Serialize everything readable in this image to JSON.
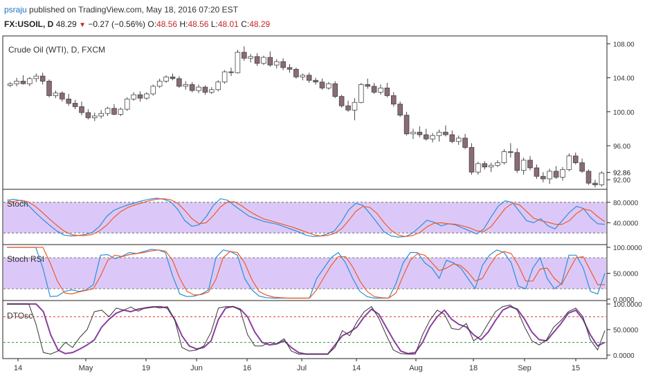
{
  "header": {
    "author": "psraju",
    "published": " published on TradingView.com, May 18, 2016 07:20 EST",
    "symbol": "FX:USOIL, D",
    "last": "48.29",
    "arrow": "▼",
    "change": "−0.27 (−0.56%)",
    "open_label": "O:",
    "open": "48.56",
    "high_label": "H:",
    "high": "48.56",
    "low_label": "L:",
    "low": "48.01",
    "close_label": "C:",
    "close": "48.29"
  },
  "colors": {
    "up_candle": "#ffffff",
    "down_candle": "#8b6b75",
    "wick": "#444444",
    "stoch_k": "#2a8fd6",
    "stoch_d": "#f05a22",
    "dt_k": "#8a3e9e",
    "dt_d": "#333333",
    "band": "#dcc8f8",
    "dash": "#555555",
    "red_line": "#e53935",
    "green_line": "#2e9b3a",
    "grid": "#222222"
  },
  "chart_data": [
    {
      "type": "candlestick",
      "title": "Crude Oil (WTI), D, FXCM",
      "y_ticks": [
        "108.00",
        "104.00",
        "100.00",
        "96.00",
        "92.00"
      ],
      "ylim": [
        91.2,
        108.6
      ],
      "last_price": "92.86",
      "x_labels": [
        "14",
        "May",
        "19",
        "Jun",
        "16",
        "Jul",
        "14",
        "Aug",
        "18",
        "Sep",
        "15"
      ],
      "ohlc": [
        [
          103.1,
          103.5,
          102.9,
          103.3
        ],
        [
          103.3,
          104.0,
          103.0,
          103.6
        ],
        [
          103.6,
          104.3,
          103.2,
          103.3
        ],
        [
          103.3,
          104.1,
          103.0,
          103.9
        ],
        [
          103.9,
          104.5,
          103.5,
          104.2
        ],
        [
          104.2,
          104.6,
          103.2,
          103.6
        ],
        [
          103.6,
          103.8,
          101.7,
          101.9
        ],
        [
          101.9,
          102.5,
          101.6,
          102.2
        ],
        [
          102.2,
          102.4,
          101.2,
          101.5
        ],
        [
          101.5,
          102.1,
          100.7,
          101.0
        ],
        [
          101.0,
          101.4,
          100.3,
          100.6
        ],
        [
          100.6,
          101.2,
          99.6,
          99.9
        ],
        [
          99.9,
          100.3,
          99.1,
          99.3
        ],
        [
          99.3,
          99.9,
          98.9,
          99.5
        ],
        [
          99.5,
          100.2,
          99.2,
          99.8
        ],
        [
          99.8,
          100.6,
          99.5,
          100.4
        ],
        [
          100.4,
          100.9,
          99.6,
          99.7
        ],
        [
          99.7,
          100.5,
          99.5,
          100.3
        ],
        [
          100.3,
          101.7,
          100.1,
          101.5
        ],
        [
          101.5,
          102.3,
          101.3,
          102.0
        ],
        [
          102.0,
          102.4,
          101.2,
          101.6
        ],
        [
          101.6,
          102.3,
          101.4,
          102.1
        ],
        [
          102.1,
          103.2,
          101.9,
          103.0
        ],
        [
          103.0,
          103.9,
          102.8,
          103.6
        ],
        [
          103.6,
          104.3,
          103.4,
          104.1
        ],
        [
          104.1,
          104.5,
          103.7,
          103.9
        ],
        [
          103.9,
          104.2,
          102.8,
          103.0
        ],
        [
          103.0,
          103.6,
          102.6,
          103.2
        ],
        [
          103.2,
          103.5,
          102.3,
          102.5
        ],
        [
          102.5,
          103.2,
          102.2,
          102.9
        ],
        [
          102.9,
          103.1,
          102.0,
          102.3
        ],
        [
          102.3,
          102.9,
          102.1,
          102.6
        ],
        [
          102.6,
          103.7,
          102.4,
          103.5
        ],
        [
          103.5,
          104.9,
          103.3,
          104.7
        ],
        [
          104.7,
          105.2,
          104.2,
          104.6
        ],
        [
          104.6,
          107.3,
          104.5,
          107.0
        ],
        [
          107.0,
          107.7,
          106.0,
          106.3
        ],
        [
          106.3,
          106.8,
          105.8,
          106.5
        ],
        [
          106.5,
          106.9,
          105.4,
          105.7
        ],
        [
          105.7,
          106.6,
          105.5,
          106.4
        ],
        [
          106.4,
          107.1,
          105.3,
          105.5
        ],
        [
          105.5,
          106.2,
          105.1,
          105.9
        ],
        [
          105.9,
          106.3,
          104.9,
          105.2
        ],
        [
          105.2,
          105.6,
          104.6,
          105.0
        ],
        [
          105.0,
          105.2,
          103.9,
          104.1
        ],
        [
          104.1,
          104.5,
          103.7,
          104.3
        ],
        [
          104.3,
          104.6,
          103.4,
          103.7
        ],
        [
          103.7,
          104.0,
          103.2,
          103.5
        ],
        [
          103.5,
          103.9,
          102.6,
          102.8
        ],
        [
          102.8,
          103.5,
          102.6,
          103.3
        ],
        [
          103.3,
          103.6,
          101.6,
          101.8
        ],
        [
          101.8,
          102.0,
          100.5,
          100.7
        ],
        [
          100.7,
          101.3,
          100.0,
          100.2
        ],
        [
          100.2,
          101.6,
          99.0,
          101.1
        ],
        [
          101.1,
          103.4,
          101.0,
          103.2
        ],
        [
          103.2,
          103.9,
          102.7,
          103.0
        ],
        [
          103.0,
          103.4,
          102.1,
          102.3
        ],
        [
          102.3,
          103.2,
          102.0,
          102.8
        ],
        [
          102.8,
          103.4,
          101.7,
          101.9
        ],
        [
          101.9,
          102.3,
          100.6,
          100.9
        ],
        [
          100.9,
          101.2,
          99.4,
          99.6
        ],
        [
          99.6,
          100.0,
          97.2,
          97.4
        ],
        [
          97.4,
          98.0,
          96.8,
          97.6
        ],
        [
          97.6,
          98.3,
          97.0,
          97.3
        ],
        [
          97.3,
          98.0,
          96.6,
          96.8
        ],
        [
          96.8,
          97.5,
          96.4,
          97.2
        ],
        [
          97.2,
          97.9,
          96.5,
          97.6
        ],
        [
          97.6,
          98.4,
          97.1,
          97.3
        ],
        [
          97.3,
          97.8,
          96.3,
          96.5
        ],
        [
          96.5,
          97.2,
          96.1,
          96.9
        ],
        [
          96.9,
          97.4,
          95.6,
          95.8
        ],
        [
          95.8,
          96.3,
          92.6,
          92.9
        ],
        [
          92.9,
          94.1,
          92.6,
          93.9
        ],
        [
          93.9,
          94.2,
          93.2,
          93.5
        ],
        [
          93.5,
          94.0,
          92.9,
          93.7
        ],
        [
          93.7,
          94.3,
          93.5,
          94.0
        ],
        [
          94.0,
          95.6,
          93.8,
          95.3
        ],
        [
          95.3,
          96.3,
          94.6,
          95.2
        ],
        [
          95.2,
          95.7,
          92.8,
          93.1
        ],
        [
          93.1,
          94.6,
          92.6,
          94.3
        ],
        [
          94.3,
          94.8,
          93.1,
          93.4
        ],
        [
          93.4,
          93.8,
          92.1,
          92.4
        ],
        [
          92.4,
          92.9,
          91.7,
          92.1
        ],
        [
          92.1,
          93.3,
          91.5,
          93.0
        ],
        [
          93.0,
          93.6,
          92.1,
          92.3
        ],
        [
          92.3,
          93.5,
          91.9,
          93.2
        ],
        [
          93.2,
          95.1,
          93.0,
          94.8
        ],
        [
          94.8,
          95.2,
          93.8,
          94.0
        ],
        [
          94.0,
          94.5,
          92.8,
          93.0
        ],
        [
          93.0,
          93.2,
          91.4,
          91.6
        ],
        [
          91.6,
          92.0,
          91.1,
          91.4
        ],
        [
          91.4,
          93.0,
          91.2,
          92.8
        ]
      ]
    },
    {
      "type": "line",
      "title": "Stoch",
      "y_ticks": [
        "80.0000",
        "40.0000"
      ],
      "ylim": [
        0,
        100
      ],
      "band": [
        20,
        80
      ],
      "series": [
        {
          "values": [
            84,
            86,
            83,
            74,
            60,
            47,
            35,
            24,
            16,
            14,
            15,
            17,
            21,
            33,
            52,
            64,
            70,
            75,
            79,
            83,
            86,
            88,
            86,
            81,
            66,
            44,
            33,
            36,
            52,
            74,
            87,
            84,
            73,
            63,
            53,
            48,
            43,
            40,
            37,
            32,
            27,
            22,
            16,
            13,
            14,
            18,
            24,
            42,
            65,
            78,
            74,
            58,
            40,
            22,
            14,
            12,
            13,
            20,
            32,
            45,
            41,
            34,
            38,
            36,
            30,
            24,
            18,
            28,
            51,
            72,
            83,
            80,
            62,
            44,
            40,
            48,
            34,
            28,
            44,
            60,
            72,
            68,
            50,
            38,
            37
          ]
        },
        {
          "values": [
            78,
            82,
            84,
            81,
            72,
            60,
            47,
            35,
            24,
            17,
            15,
            15,
            17,
            24,
            35,
            50,
            62,
            70,
            75,
            79,
            83,
            86,
            87,
            85,
            78,
            64,
            48,
            38,
            40,
            54,
            71,
            81,
            81,
            73,
            63,
            55,
            48,
            44,
            40,
            36,
            32,
            27,
            22,
            17,
            14,
            15,
            19,
            28,
            44,
            62,
            72,
            70,
            58,
            40,
            25,
            16,
            13,
            15,
            21,
            32,
            39,
            40,
            38,
            37,
            34,
            30,
            24,
            23,
            32,
            50,
            68,
            78,
            75,
            62,
            49,
            44,
            41,
            37,
            37,
            44,
            58,
            67,
            64,
            52,
            42
          ]
        }
      ]
    },
    {
      "type": "line",
      "title": "Stoch RSI",
      "y_ticks": [
        "100.0000",
        "50.0000",
        "0.0000"
      ],
      "ylim": [
        0,
        100
      ],
      "band": [
        20,
        80
      ],
      "series": [
        {
          "values": [
            100,
            100,
            100,
            100,
            100,
            60,
            5,
            6,
            15,
            18,
            15,
            18,
            28,
            85,
            86,
            78,
            83,
            90,
            88,
            92,
            96,
            95,
            90,
            45,
            10,
            5,
            6,
            10,
            18,
            80,
            95,
            92,
            85,
            40,
            18,
            6,
            3,
            2,
            2,
            2,
            2,
            2,
            2,
            40,
            60,
            80,
            90,
            70,
            40,
            15,
            5,
            2,
            2,
            2,
            30,
            70,
            90,
            90,
            70,
            60,
            40,
            75,
            70,
            60,
            40,
            20,
            65,
            85,
            95,
            90,
            70,
            25,
            20,
            60,
            80,
            40,
            20,
            30,
            85,
            85,
            60,
            15,
            10,
            50
          ]
        },
        {
          "values": [
            100,
            100,
            100,
            100,
            100,
            100,
            70,
            35,
            12,
            10,
            14,
            17,
            20,
            45,
            75,
            85,
            82,
            86,
            88,
            90,
            93,
            95,
            93,
            75,
            40,
            15,
            8,
            9,
            14,
            38,
            80,
            92,
            90,
            70,
            38,
            15,
            8,
            4,
            3,
            2,
            2,
            2,
            2,
            18,
            42,
            65,
            82,
            82,
            62,
            35,
            15,
            5,
            3,
            2,
            12,
            45,
            75,
            88,
            85,
            70,
            55,
            60,
            68,
            65,
            52,
            35,
            40,
            65,
            85,
            92,
            88,
            65,
            35,
            35,
            58,
            60,
            40,
            28,
            55,
            80,
            82,
            55,
            28,
            28
          ]
        }
      ]
    },
    {
      "type": "line",
      "title": "DTOsc",
      "y_ticks": [
        "100.0000",
        "50.0000",
        "0.0000"
      ],
      "ylim": [
        0,
        100
      ],
      "levels": [
        75,
        25
      ],
      "series": [
        {
          "values": [
            100,
            100,
            100,
            100,
            100,
            85,
            40,
            10,
            3,
            5,
            12,
            20,
            30,
            55,
            70,
            82,
            88,
            85,
            90,
            92,
            94,
            95,
            92,
            70,
            38,
            18,
            12,
            15,
            28,
            70,
            92,
            95,
            90,
            75,
            45,
            25,
            20,
            22,
            28,
            15,
            5,
            2,
            2,
            2,
            2,
            20,
            38,
            45,
            55,
            75,
            90,
            80,
            55,
            30,
            8,
            3,
            5,
            25,
            55,
            75,
            88,
            70,
            60,
            55,
            40,
            30,
            45,
            68,
            88,
            95,
            90,
            70,
            45,
            30,
            28,
            45,
            62,
            82,
            88,
            70,
            40,
            18,
            25
          ]
        },
        {
          "values": [
            100,
            100,
            100,
            100,
            60,
            5,
            2,
            8,
            25,
            15,
            35,
            50,
            85,
            88,
            75,
            92,
            88,
            94,
            86,
            93,
            95,
            92,
            95,
            70,
            15,
            8,
            10,
            18,
            45,
            92,
            95,
            95,
            88,
            40,
            18,
            18,
            25,
            22,
            32,
            8,
            2,
            2,
            2,
            2,
            2,
            15,
            48,
            38,
            65,
            85,
            95,
            72,
            40,
            10,
            3,
            2,
            2,
            40,
            68,
            88,
            80,
            52,
            50,
            62,
            28,
            38,
            62,
            85,
            95,
            98,
            88,
            55,
            28,
            20,
            30,
            55,
            68,
            85,
            92,
            75,
            30,
            10,
            48
          ]
        }
      ]
    }
  ]
}
